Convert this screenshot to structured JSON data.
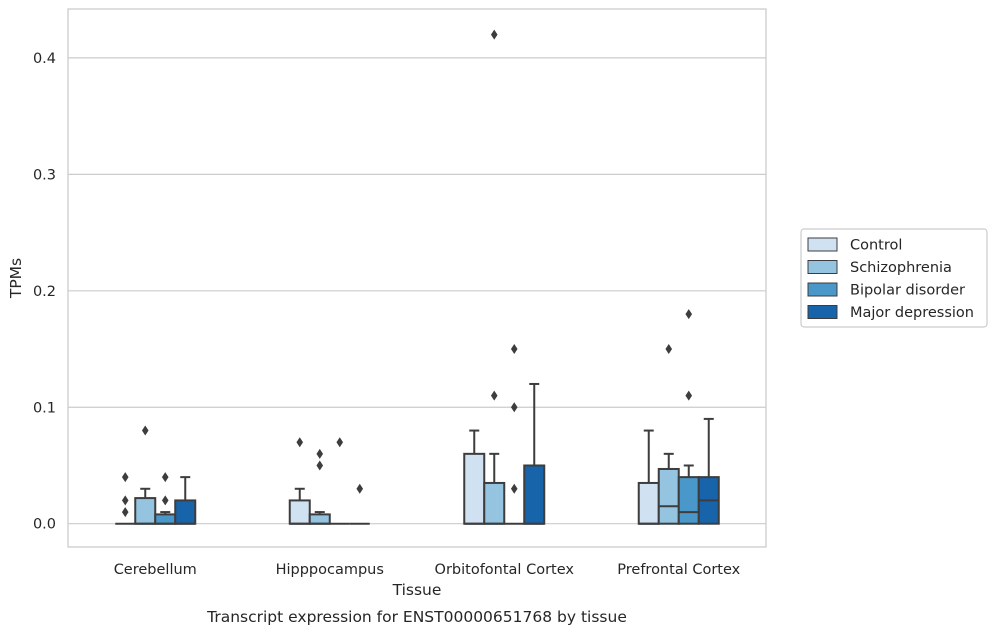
{
  "chart_data": {
    "type": "box",
    "caption": "Transcript expression for ENST00000651768 by tissue",
    "xlabel": "Tissue",
    "ylabel": "TPMs",
    "ylim": [
      -0.02,
      0.442
    ],
    "yticks": [
      0.0,
      0.1,
      0.2,
      0.3,
      0.4
    ],
    "ytick_labels": [
      "0.0",
      "0.1",
      "0.2",
      "0.3",
      "0.4"
    ],
    "grid": "horizontal",
    "legend_placement": "right",
    "categories": [
      "Cerebellum",
      "Hipppocampus",
      "Orbitofontal Cortex",
      "Prefrontal Cortex"
    ],
    "series": [
      {
        "name": "Control",
        "color": "#d0e1f2",
        "boxes": [
          {
            "whislo": 0.0,
            "q1": 0.0,
            "med": 0.0,
            "q3": 0.0,
            "whishi": 0.0,
            "fliers": [
              0.01,
              0.02,
              0.04
            ]
          },
          {
            "whislo": 0.0,
            "q1": 0.0,
            "med": 0.0,
            "q3": 0.02,
            "whishi": 0.03,
            "fliers": [
              0.07
            ]
          },
          {
            "whislo": 0.0,
            "q1": 0.0,
            "med": 0.0,
            "q3": 0.06,
            "whishi": 0.08,
            "fliers": []
          },
          {
            "whislo": 0.0,
            "q1": 0.0,
            "med": 0.0,
            "q3": 0.035,
            "whishi": 0.08,
            "fliers": []
          }
        ]
      },
      {
        "name": "Schizophrenia",
        "color": "#94c4df",
        "boxes": [
          {
            "whislo": 0.0,
            "q1": 0.0,
            "med": 0.0,
            "q3": 0.022,
            "whishi": 0.03,
            "fliers": [
              0.08
            ]
          },
          {
            "whislo": 0.0,
            "q1": 0.0,
            "med": 0.0,
            "q3": 0.008,
            "whishi": 0.01,
            "fliers": [
              0.05,
              0.06
            ]
          },
          {
            "whislo": 0.0,
            "q1": 0.0,
            "med": 0.0,
            "q3": 0.035,
            "whishi": 0.06,
            "fliers": [
              0.11,
              0.42
            ]
          },
          {
            "whislo": 0.0,
            "q1": 0.0,
            "med": 0.015,
            "q3": 0.047,
            "whishi": 0.06,
            "fliers": [
              0.15
            ]
          }
        ]
      },
      {
        "name": "Bipolar disorder",
        "color": "#4a98c9",
        "boxes": [
          {
            "whislo": 0.0,
            "q1": 0.0,
            "med": 0.0,
            "q3": 0.008,
            "whishi": 0.01,
            "fliers": [
              0.02,
              0.04
            ]
          },
          {
            "whislo": 0.0,
            "q1": 0.0,
            "med": 0.0,
            "q3": 0.0,
            "whishi": 0.0,
            "fliers": [
              0.07
            ]
          },
          {
            "whislo": 0.0,
            "q1": 0.0,
            "med": 0.0,
            "q3": 0.0,
            "whishi": 0.0,
            "fliers": [
              0.03,
              0.1,
              0.15
            ]
          },
          {
            "whislo": 0.0,
            "q1": 0.0,
            "med": 0.01,
            "q3": 0.04,
            "whishi": 0.05,
            "fliers": [
              0.11,
              0.18
            ]
          }
        ]
      },
      {
        "name": "Major depression",
        "color": "#1764ab",
        "boxes": [
          {
            "whislo": 0.0,
            "q1": 0.0,
            "med": 0.0,
            "q3": 0.02,
            "whishi": 0.04,
            "fliers": []
          },
          {
            "whislo": 0.0,
            "q1": 0.0,
            "med": 0.0,
            "q3": 0.0,
            "whishi": 0.0,
            "fliers": [
              0.03
            ]
          },
          {
            "whislo": 0.0,
            "q1": 0.0,
            "med": 0.0,
            "q3": 0.05,
            "whishi": 0.12,
            "fliers": []
          },
          {
            "whislo": 0.0,
            "q1": 0.0,
            "med": 0.02,
            "q3": 0.04,
            "whishi": 0.09,
            "fliers": []
          }
        ]
      }
    ]
  }
}
